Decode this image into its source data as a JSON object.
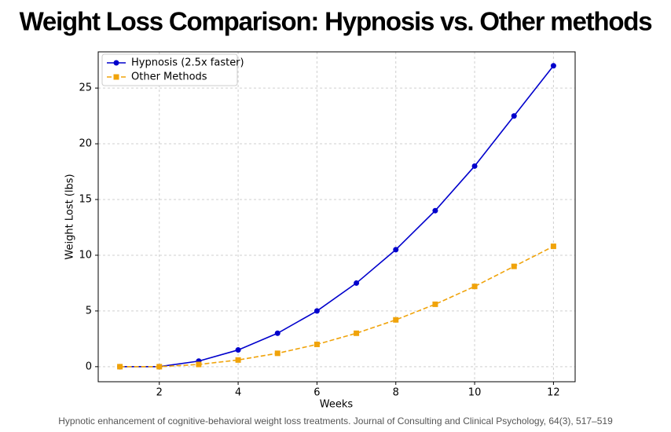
{
  "chart_data": {
    "type": "line",
    "title": "Weight Loss Comparison: Hypnosis vs. Other methods",
    "x_label": "Weeks",
    "y_label": "Weight Lost (lbs)",
    "x": [
      1,
      2,
      3,
      4,
      5,
      6,
      7,
      8,
      9,
      10,
      11,
      12
    ],
    "series": [
      {
        "name": "Hypnosis (2.5x faster)",
        "color": "#0000cc",
        "marker": "circle",
        "linestyle": "solid",
        "values": [
          0,
          0,
          0.5,
          1.5,
          3,
          5,
          7.5,
          10.5,
          14,
          18,
          22.5,
          27
        ]
      },
      {
        "name": "Other Methods",
        "color": "#f0a30a",
        "marker": "square",
        "linestyle": "dashed",
        "values": [
          0,
          0,
          0.2,
          0.6,
          1.2,
          2,
          3,
          4.2,
          5.6,
          7.2,
          9,
          10.8
        ]
      }
    ],
    "xlim": [
      0.45,
      12.55
    ],
    "ylim": [
      -1.35,
      28.25
    ],
    "xticks": [
      2,
      4,
      6,
      8,
      10,
      12
    ],
    "yticks": [
      0,
      5,
      10,
      15,
      20,
      25
    ],
    "grid": true,
    "legend": "upper left",
    "source": "Hypnotic enhancement of cognitive-behavioral weight loss treatments. Journal of Consulting and Clinical Psychology, 64(3), 517–519"
  }
}
